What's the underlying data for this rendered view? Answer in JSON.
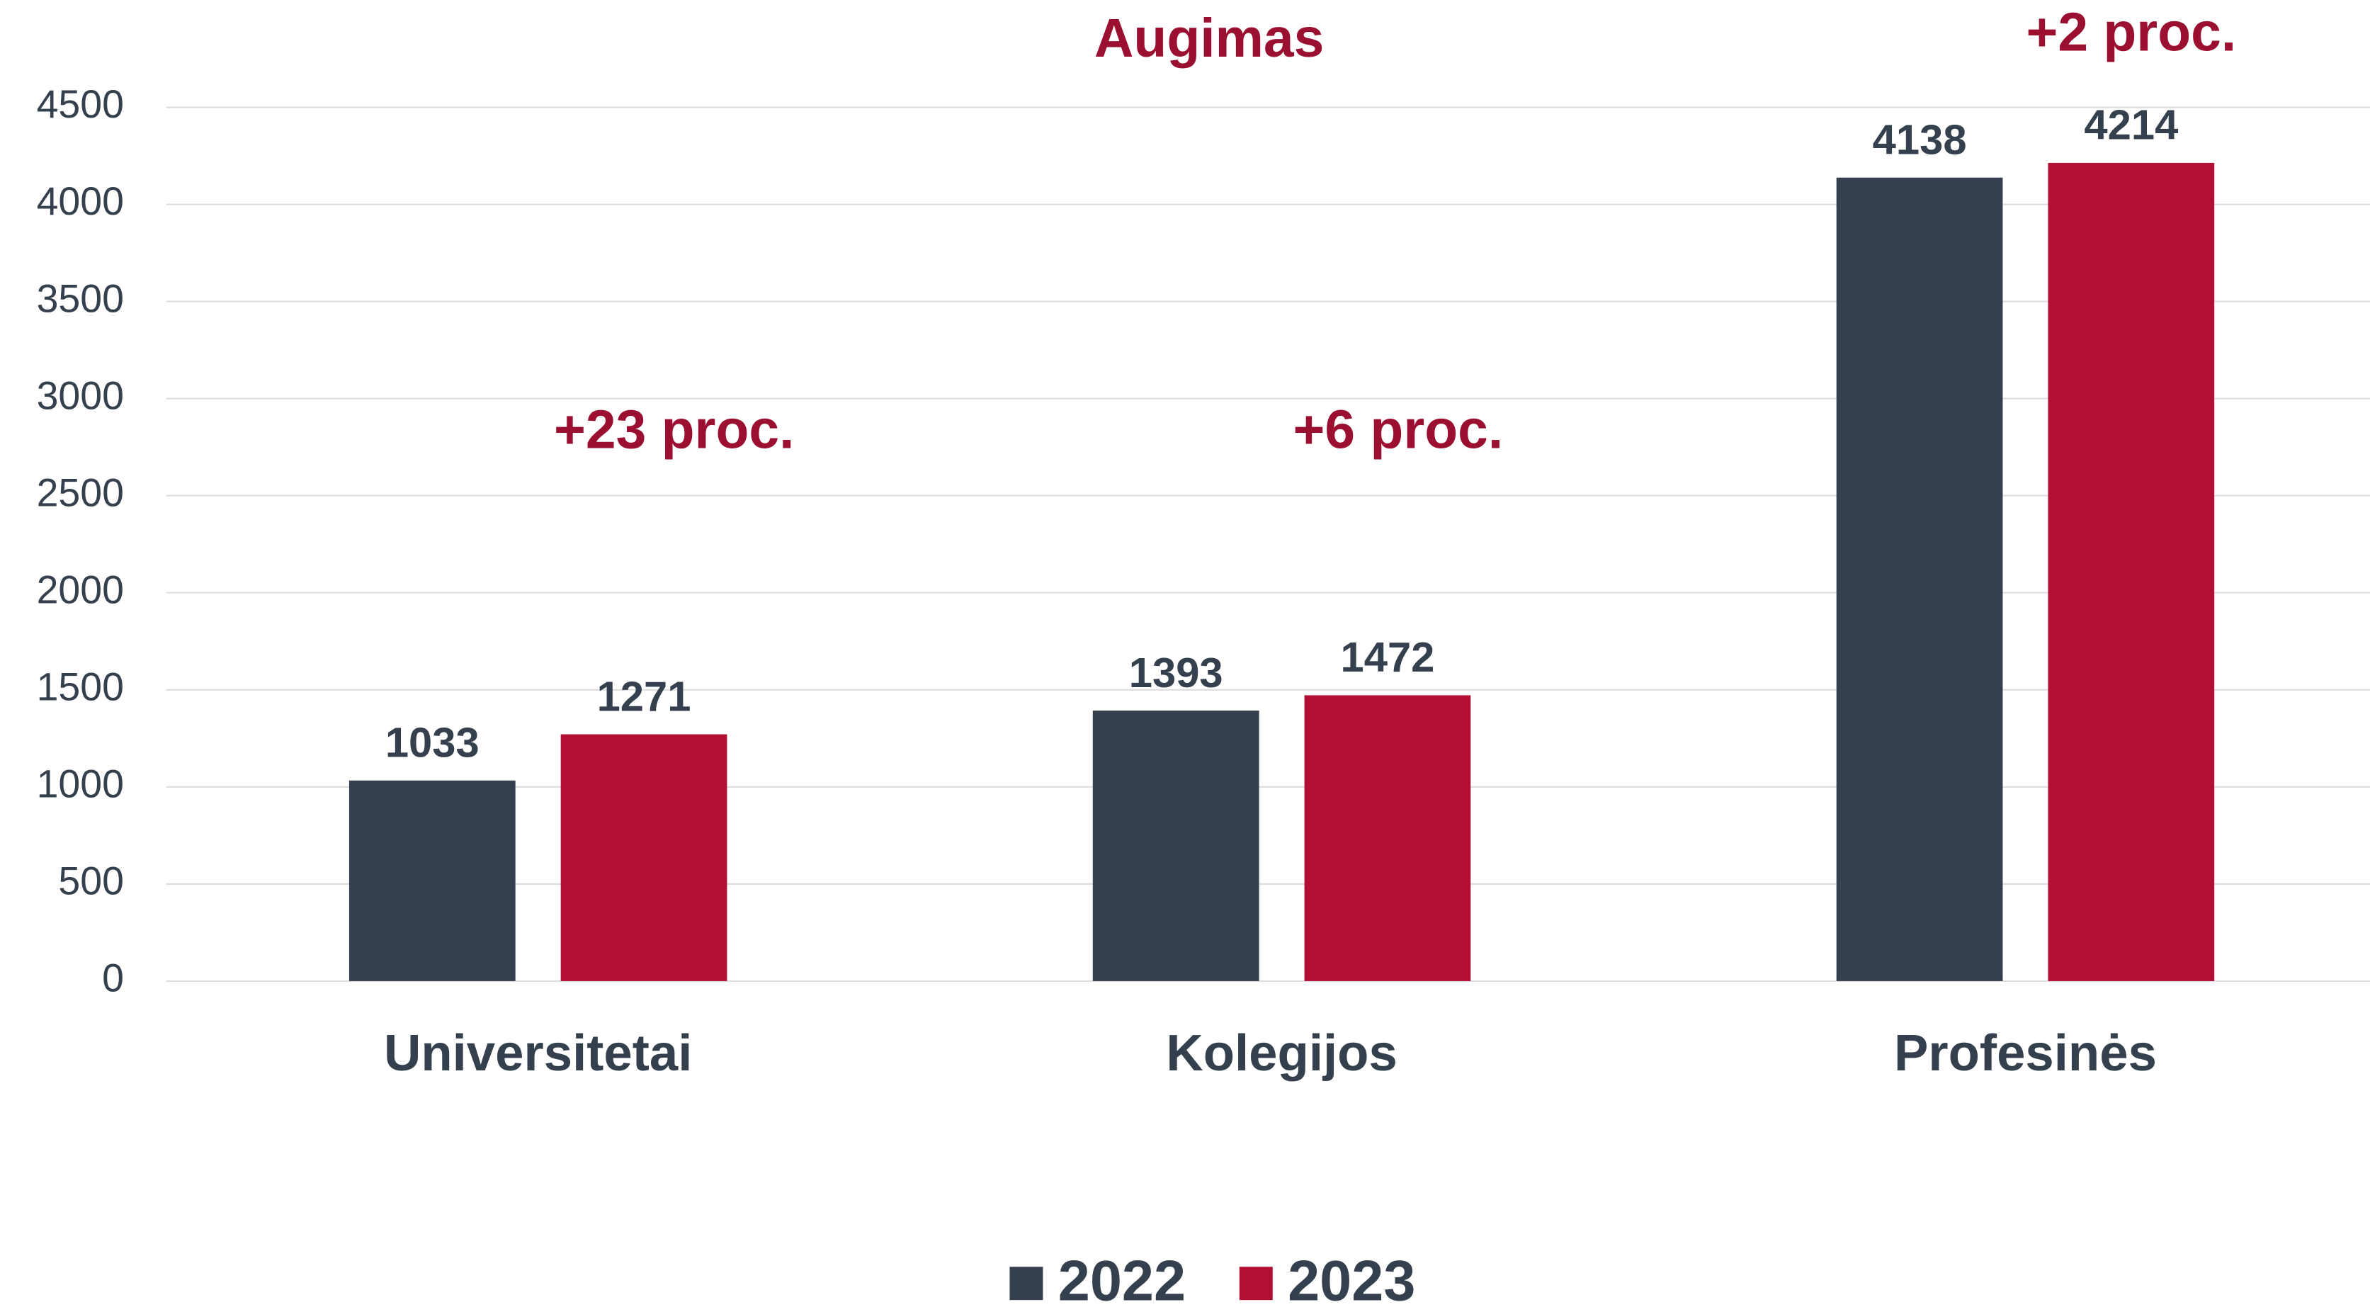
{
  "chart_data": {
    "type": "bar",
    "title": "Augimas",
    "categories": [
      "Universitetai",
      "Kolegijos",
      "Profesinės"
    ],
    "series": [
      {
        "name": "2022",
        "color": "#34404d",
        "values": [
          1033,
          1393,
          4138
        ]
      },
      {
        "name": "2023",
        "color": "#b30f35",
        "values": [
          1271,
          1472,
          4214
        ]
      }
    ],
    "annotations": [
      "+23 proc.",
      "+6 proc.",
      "+2 proc."
    ],
    "ylim": [
      0,
      4500
    ],
    "yticks": [
      0,
      500,
      1000,
      1500,
      2000,
      2500,
      3000,
      3500,
      4000,
      4500
    ],
    "grid": true,
    "legend": "bottom"
  }
}
